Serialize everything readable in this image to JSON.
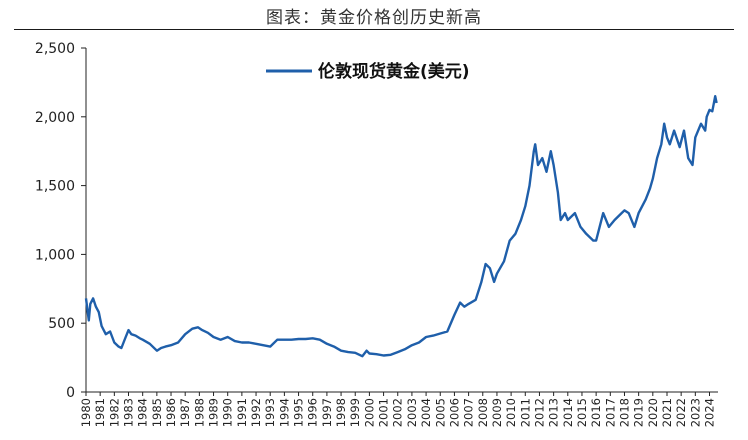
{
  "title": "图表：黄金价格创历史新高",
  "chart_data": {
    "type": "line",
    "title": "图表：黄金价格创历史新高",
    "xlabel": "",
    "ylabel": "",
    "ylim": [
      0,
      2500
    ],
    "yticks": [
      0,
      500,
      1000,
      1500,
      2000,
      2500
    ],
    "ytick_labels": [
      "0",
      "500",
      "1,000",
      "1,500",
      "2,000",
      "2,500"
    ],
    "xlim": [
      1980,
      2024.6
    ],
    "xtick_labels": [
      "1980",
      "1981",
      "1982",
      "1983",
      "1984",
      "1985",
      "1986",
      "1987",
      "1988",
      "1989",
      "1990",
      "1991",
      "1992",
      "1993",
      "1994",
      "1995",
      "1996",
      "1997",
      "1998",
      "1999",
      "2000",
      "2001",
      "2002",
      "2003",
      "2004",
      "2005",
      "2006",
      "2007",
      "2008",
      "2009",
      "2010",
      "2011",
      "2012",
      "2013",
      "2014",
      "2015",
      "2016",
      "2017",
      "2018",
      "2019",
      "2020",
      "2021",
      "2022",
      "2023",
      "2024"
    ],
    "grid": false,
    "legend_position": "top-center",
    "series": [
      {
        "name": "伦敦现货黄金(美元)",
        "color": "#1f5faa",
        "x": [
          1980.0,
          1980.1,
          1980.2,
          1980.3,
          1980.5,
          1980.7,
          1980.9,
          1981.1,
          1981.4,
          1981.7,
          1982.0,
          1982.3,
          1982.5,
          1982.8,
          1983.0,
          1983.2,
          1983.5,
          1983.8,
          1984.0,
          1984.5,
          1985.0,
          1985.3,
          1985.6,
          1986.0,
          1986.5,
          1987.0,
          1987.5,
          1987.9,
          1988.2,
          1988.6,
          1989.0,
          1989.5,
          1990.0,
          1990.5,
          1991.0,
          1991.5,
          1992.0,
          1992.5,
          1993.0,
          1993.5,
          1994.0,
          1994.5,
          1995.0,
          1995.5,
          1996.0,
          1996.5,
          1997.0,
          1997.5,
          1998.0,
          1998.5,
          1999.0,
          1999.5,
          1999.8,
          2000.0,
          2000.5,
          2001.0,
          2001.5,
          2002.0,
          2002.5,
          2003.0,
          2003.5,
          2004.0,
          2004.5,
          2005.0,
          2005.5,
          2006.0,
          2006.4,
          2006.7,
          2007.0,
          2007.5,
          2007.9,
          2008.2,
          2008.5,
          2008.8,
          2009.0,
          2009.5,
          2009.9,
          2010.3,
          2010.7,
          2011.0,
          2011.3,
          2011.6,
          2011.7,
          2011.9,
          2012.2,
          2012.5,
          2012.8,
          2013.0,
          2013.3,
          2013.5,
          2013.8,
          2014.0,
          2014.5,
          2014.9,
          2015.3,
          2015.8,
          2016.0,
          2016.5,
          2016.9,
          2017.3,
          2017.8,
          2018.0,
          2018.3,
          2018.7,
          2019.0,
          2019.5,
          2019.8,
          2020.0,
          2020.3,
          2020.6,
          2020.8,
          2021.0,
          2021.2,
          2021.5,
          2021.9,
          2022.2,
          2022.5,
          2022.8,
          2023.0,
          2023.4,
          2023.7,
          2023.8,
          2024.0,
          2024.2,
          2024.4,
          2024.5
        ],
        "y": [
          680,
          600,
          520,
          640,
          680,
          620,
          580,
          480,
          420,
          440,
          360,
          330,
          320,
          400,
          450,
          420,
          410,
          390,
          380,
          350,
          300,
          320,
          330,
          340,
          360,
          420,
          460,
          470,
          450,
          430,
          400,
          380,
          400,
          370,
          360,
          360,
          350,
          340,
          330,
          380,
          380,
          380,
          385,
          385,
          390,
          380,
          350,
          330,
          300,
          290,
          285,
          260,
          300,
          280,
          275,
          265,
          270,
          290,
          310,
          340,
          360,
          400,
          410,
          425,
          440,
          560,
          650,
          620,
          640,
          670,
          800,
          930,
          900,
          800,
          860,
          950,
          1100,
          1150,
          1250,
          1350,
          1500,
          1750,
          1800,
          1650,
          1700,
          1600,
          1750,
          1650,
          1450,
          1250,
          1300,
          1250,
          1300,
          1200,
          1150,
          1100,
          1100,
          1300,
          1200,
          1250,
          1300,
          1320,
          1300,
          1200,
          1300,
          1400,
          1480,
          1550,
          1700,
          1800,
          1950,
          1850,
          1800,
          1900,
          1780,
          1900,
          1700,
          1650,
          1850,
          1950,
          1900,
          2000,
          2050,
          2040,
          2150,
          2100
        ]
      }
    ]
  }
}
